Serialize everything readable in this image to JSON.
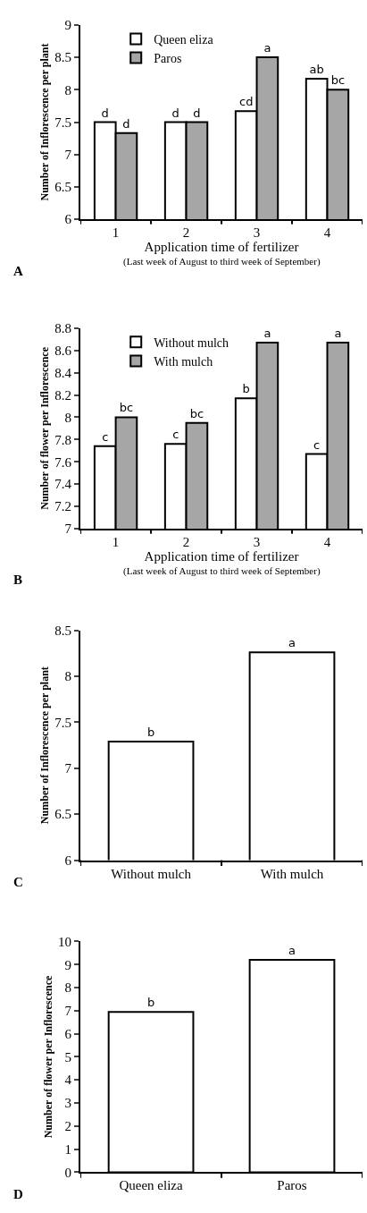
{
  "chart_data": [
    {
      "type": "bar",
      "categories": [
        "1",
        "2",
        "3",
        "4"
      ],
      "xlabel": "Application time of fertilizer",
      "ylabel": "Number of Inflorescence per plant",
      "ylim": [
        6,
        9
      ],
      "yticks": [
        6,
        6.5,
        7,
        7.5,
        8,
        8.5,
        9
      ],
      "legend": "top left",
      "series": [
        {
          "name": "Queen eliza",
          "color": "#ffffff",
          "values": [
            7.5,
            7.5,
            7.67,
            8.17
          ],
          "value_labels": [
            "d",
            "d",
            "cd",
            "ab"
          ]
        },
        {
          "name": "Paros",
          "color": "#a6a6a6",
          "values": [
            7.33,
            7.5,
            8.5,
            8.0
          ],
          "value_labels": [
            "d",
            "d",
            "a",
            "bc"
          ]
        }
      ],
      "annotations": [
        "A",
        "(Last week of August to third week of September)"
      ]
    },
    {
      "type": "bar",
      "categories": [
        "1",
        "2",
        "3",
        "4"
      ],
      "xlabel": "Application time of fertilizer",
      "ylabel": "Number of flower per Inflorescence",
      "ylim": [
        7,
        8.8
      ],
      "yticks": [
        7,
        7.2,
        7.4,
        7.6,
        7.8,
        8,
        8.2,
        8.4,
        8.6,
        8.8
      ],
      "legend": "top left",
      "series": [
        {
          "name": "Without mulch",
          "color": "#ffffff",
          "values": [
            7.74,
            7.76,
            8.17,
            7.67
          ],
          "value_labels": [
            "c",
            "c",
            "b",
            "c"
          ]
        },
        {
          "name": "With mulch",
          "color": "#a6a6a6",
          "values": [
            8.0,
            7.95,
            8.67,
            8.67
          ],
          "value_labels": [
            "bc",
            "bc",
            "a",
            "a"
          ]
        }
      ],
      "annotations": [
        "B",
        "(Last week of August to third week of September)"
      ]
    },
    {
      "type": "bar",
      "categories": [
        "Without mulch",
        "With mulch"
      ],
      "ylabel": "Number of Inflorescence per plant",
      "ylim": [
        6,
        8.5
      ],
      "yticks": [
        6,
        6.5,
        7,
        7.5,
        8,
        8.5
      ],
      "series": [
        {
          "color": "#ffffff",
          "values": [
            7.29,
            8.26
          ],
          "value_labels": [
            "b",
            "a"
          ]
        }
      ],
      "annotations": [
        "C"
      ]
    },
    {
      "type": "bar",
      "categories": [
        "Queen eliza",
        "Paros"
      ],
      "ylabel": "Number of flower per Inflorescence",
      "ylim": [
        0,
        10
      ],
      "yticks": [
        0,
        1,
        2,
        3,
        4,
        5,
        6,
        7,
        8,
        9,
        10
      ],
      "series": [
        {
          "color": "#ffffff",
          "values": [
            6.95,
            9.2
          ],
          "value_labels": [
            "b",
            "a"
          ]
        }
      ],
      "annotations": [
        "D"
      ]
    }
  ]
}
